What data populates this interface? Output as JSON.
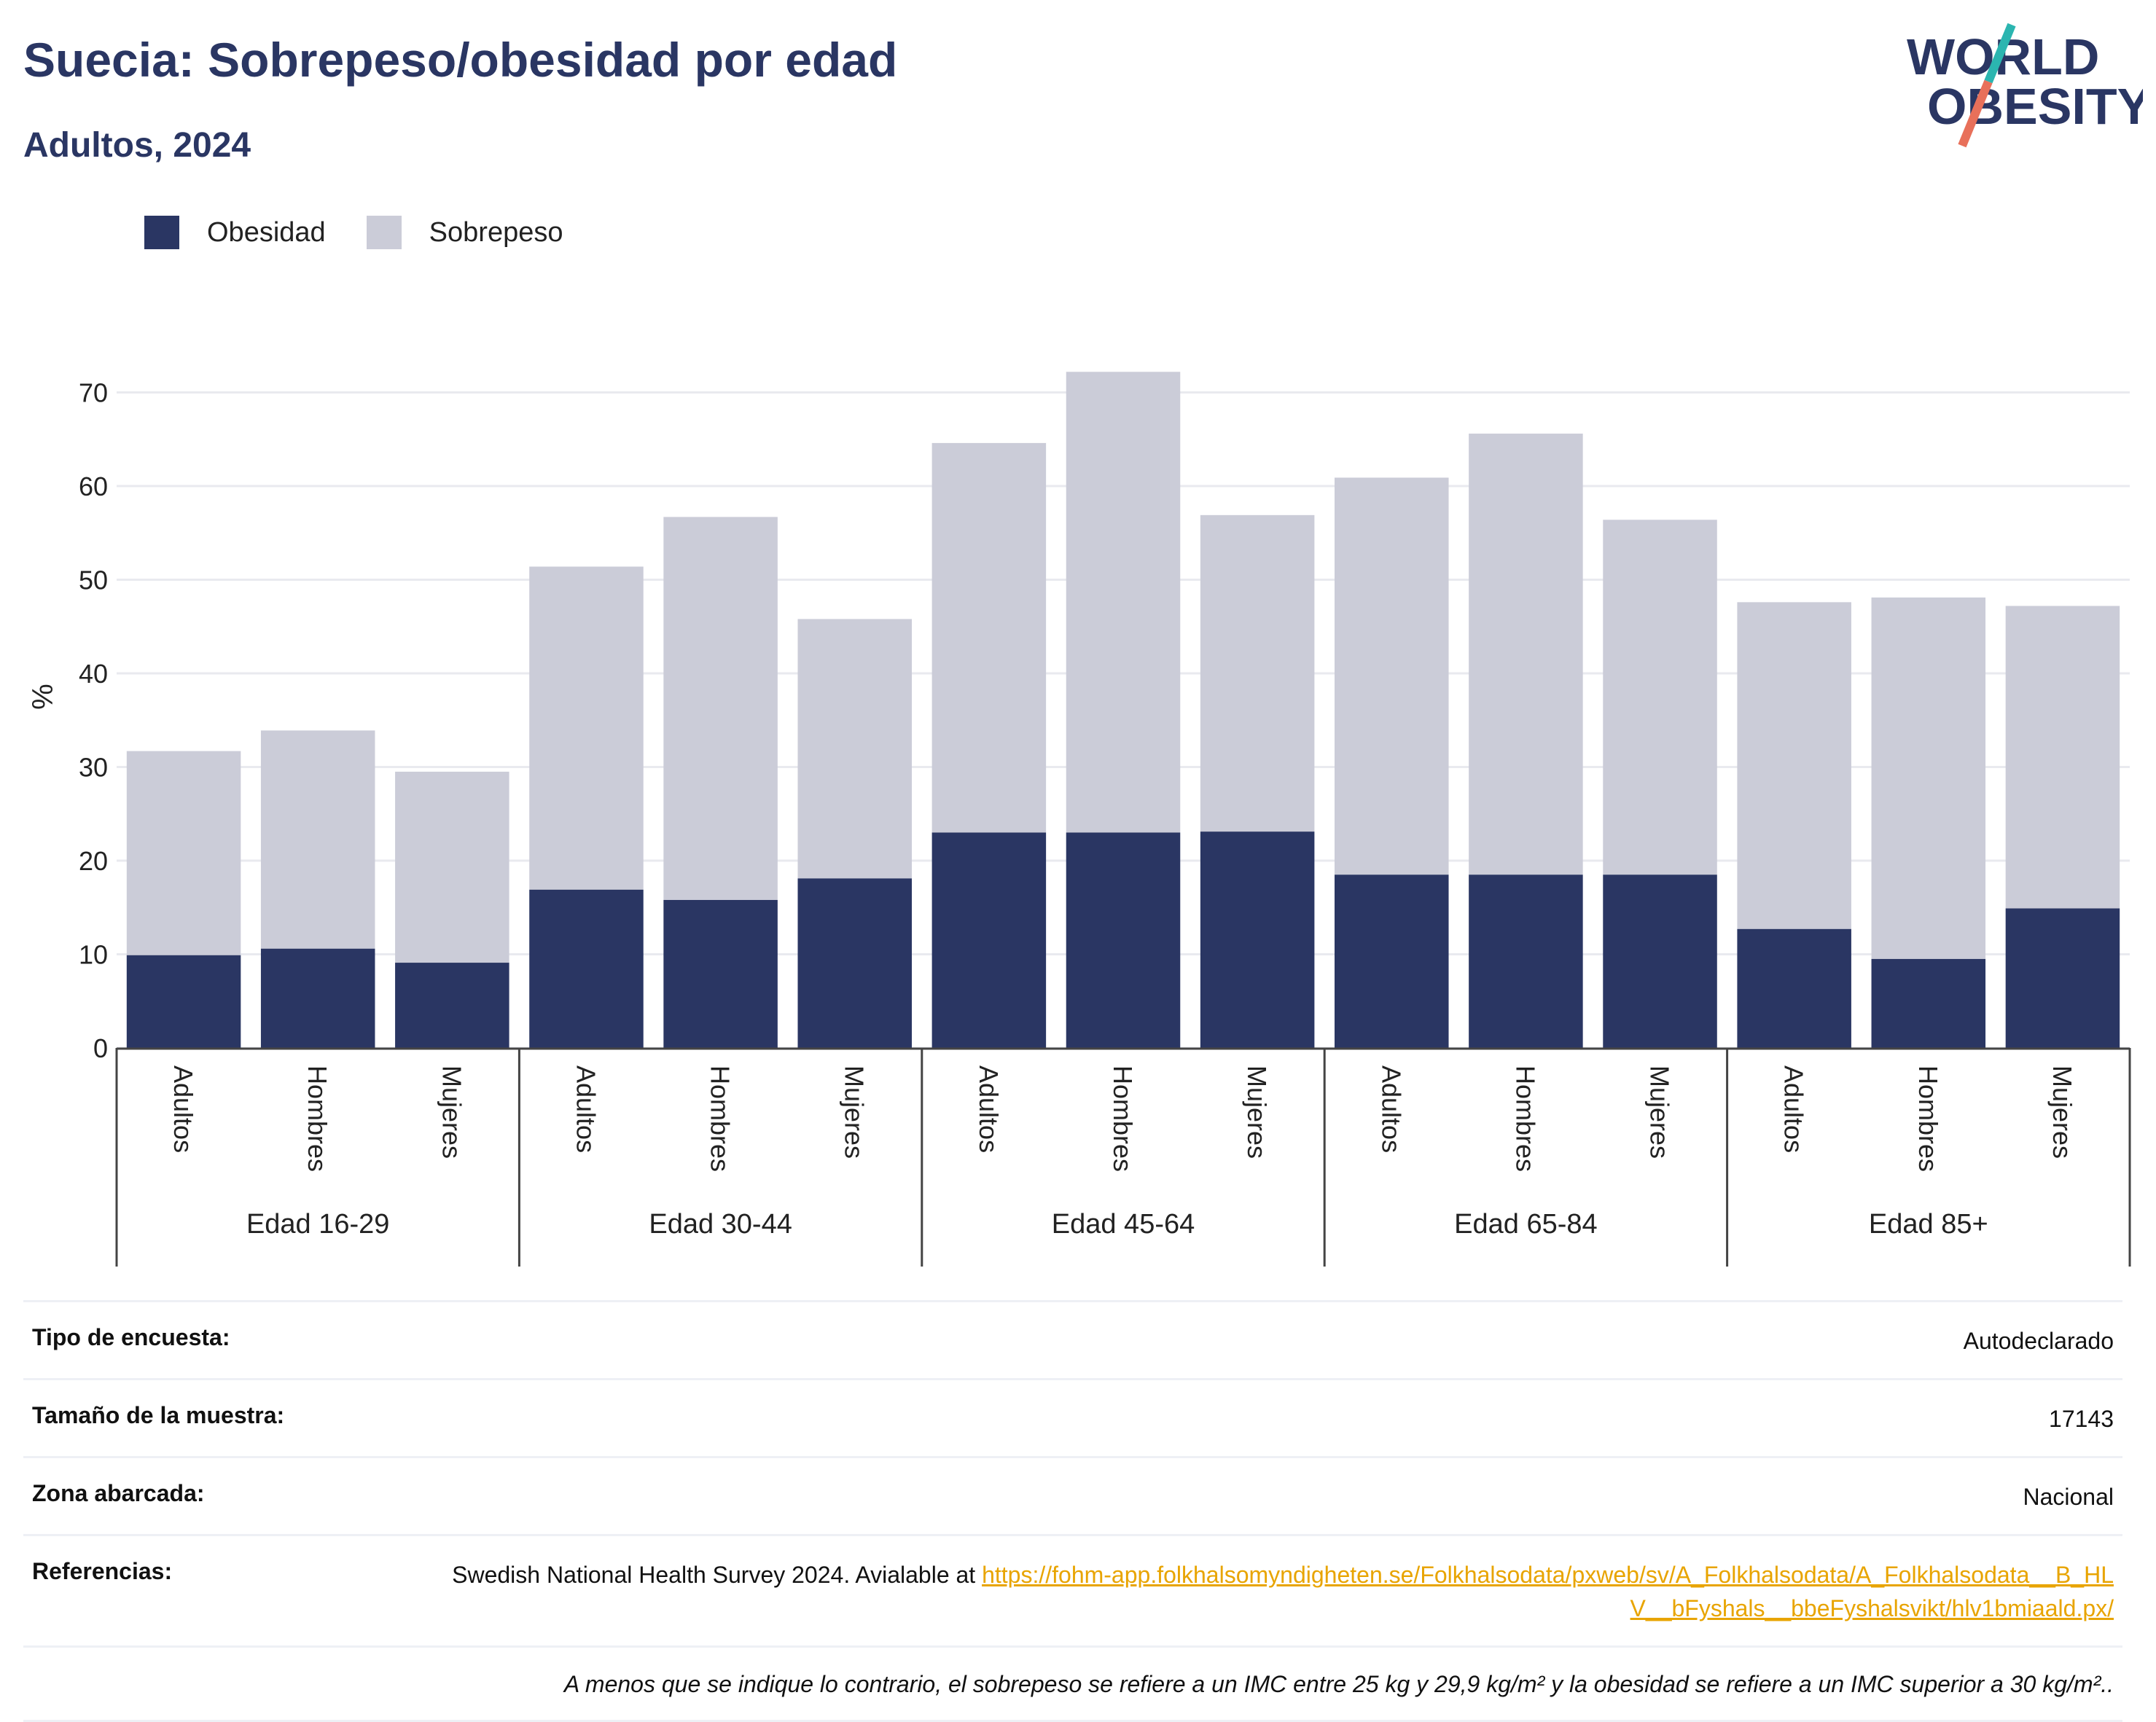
{
  "title": "Suecia: Sobrepeso/obesidad por edad",
  "subtitle": "Adultos, 2024",
  "logo": {
    "line1": "WORLD",
    "line2": "OBESITY",
    "colors": {
      "text": "#2a3663",
      "teal": "#2bb5b0",
      "coral": "#e8705a"
    }
  },
  "legend": [
    {
      "label": "Obesidad",
      "color": "#2a3663"
    },
    {
      "label": "Sobrepeso",
      "color": "#cbccd8"
    }
  ],
  "chart_data": {
    "type": "bar",
    "stacked": true,
    "ylabel": "%",
    "ylim": [
      0,
      75
    ],
    "yticks": [
      0,
      10,
      20,
      30,
      40,
      50,
      60,
      70
    ],
    "grid": true,
    "legend_position": "top-left",
    "groups": [
      "Edad 16-29",
      "Edad 30-44",
      "Edad 45-64",
      "Edad 65-84",
      "Edad 85+"
    ],
    "subcategories": [
      "Adultos",
      "Hombres",
      "Mujeres"
    ],
    "series": [
      {
        "name": "Obesidad",
        "color": "#2a3663",
        "values": [
          9.9,
          10.6,
          9.1,
          16.9,
          15.8,
          18.1,
          23.0,
          23.0,
          23.1,
          18.5,
          18.5,
          18.5,
          12.7,
          9.5,
          14.9
        ]
      },
      {
        "name": "Sobrepeso",
        "color": "#cbccd8",
        "values": [
          21.8,
          23.3,
          20.4,
          34.5,
          40.9,
          27.7,
          41.6,
          49.2,
          33.8,
          42.4,
          47.1,
          37.9,
          34.9,
          38.6,
          32.3
        ]
      }
    ]
  },
  "info": [
    {
      "label": "Tipo de encuesta:",
      "value": "Autodeclarado"
    },
    {
      "label": "Tamaño de la muestra:",
      "value": "17143"
    },
    {
      "label": "Zona abarcada:",
      "value": "Nacional"
    }
  ],
  "references": {
    "label": "Referencias:",
    "text": "Swedish National Health Survey 2024. Avialable at ",
    "link": "https://fohm-app.folkhalsomyndigheten.se/Folkhalsodata/pxweb/sv/A_Folkhalsodata/A_Folkhalsodata__B_HLV__bFyshals__bbeFyshalsvikt/hlv1bmiaald.px/"
  },
  "footnote": "A menos que se indique lo contrario, el sobrepeso se refiere a un IMC entre 25 kg y 29,9 kg/m² y la obesidad se refiere a un IMC superior a 30 kg/m².."
}
